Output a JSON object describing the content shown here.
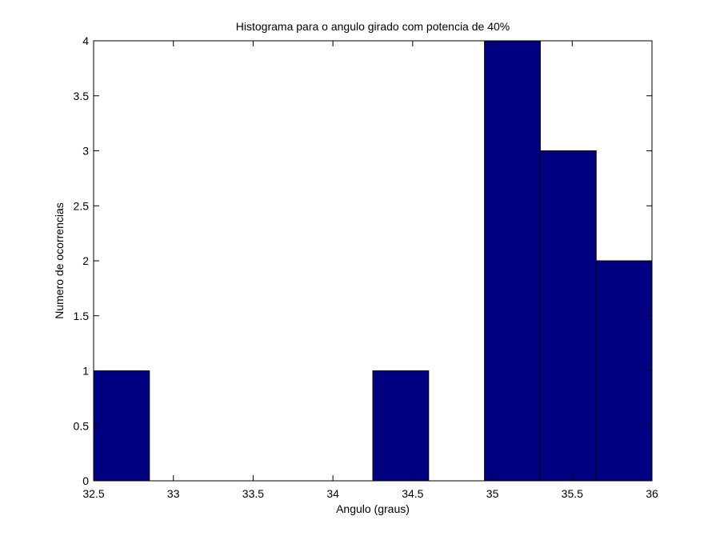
{
  "chart_data": {
    "type": "bar",
    "title": "Histograma para o angulo girado com potencia de 40%",
    "xlabel": "Angulo (graus)",
    "ylabel": "Numero de ocorrencias",
    "xlim": [
      32.5,
      36
    ],
    "ylim": [
      0,
      4
    ],
    "xticks": [
      "32.5",
      "33",
      "33.5",
      "34",
      "34.5",
      "35",
      "35.5",
      "36"
    ],
    "yticks": [
      "0",
      "0.5",
      "1",
      "1.5",
      "2",
      "2.5",
      "3",
      "3.5",
      "4"
    ],
    "bins": [
      {
        "start": 32.5,
        "end": 32.85,
        "count": 1
      },
      {
        "start": 32.85,
        "end": 33.2,
        "count": 0
      },
      {
        "start": 33.2,
        "end": 33.55,
        "count": 0
      },
      {
        "start": 33.55,
        "end": 33.9,
        "count": 0
      },
      {
        "start": 33.9,
        "end": 34.25,
        "count": 0
      },
      {
        "start": 34.25,
        "end": 34.6,
        "count": 1
      },
      {
        "start": 34.6,
        "end": 34.95,
        "count": 0
      },
      {
        "start": 34.95,
        "end": 35.3,
        "count": 4
      },
      {
        "start": 35.3,
        "end": 35.65,
        "count": 3
      },
      {
        "start": 35.65,
        "end": 36.0,
        "count": 2
      }
    ],
    "bar_color": "#000080",
    "grid": false
  }
}
